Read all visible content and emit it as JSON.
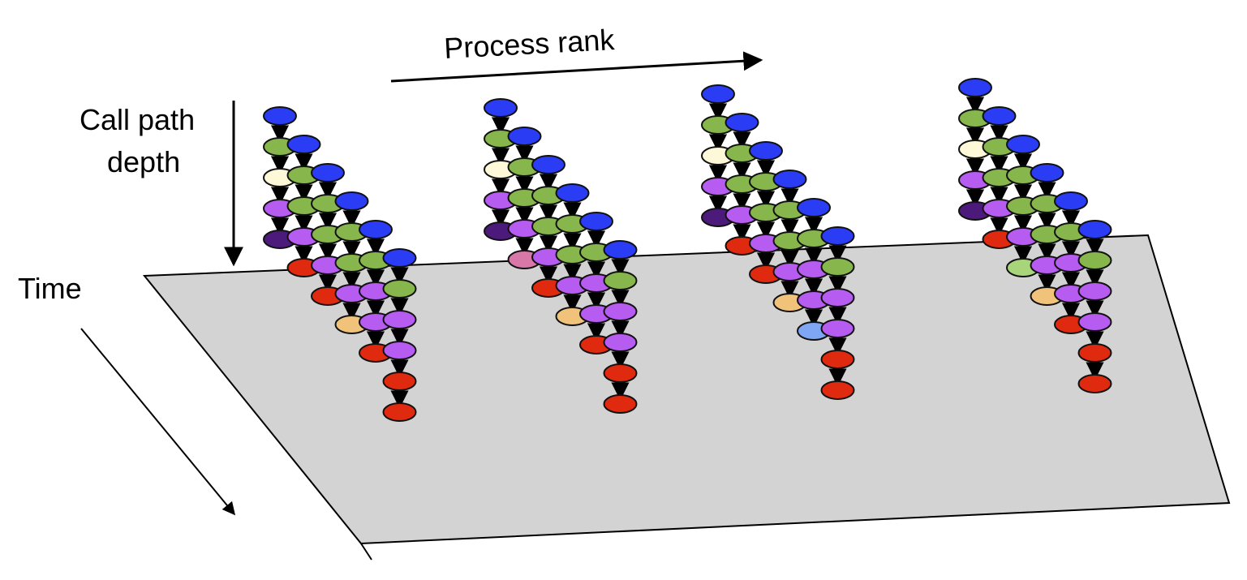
{
  "labels": {
    "process_rank": "Process rank",
    "call_path_depth_line1": "Call path",
    "call_path_depth_line2": "depth",
    "time": "Time"
  },
  "colors": {
    "plane_fill": "#d3d3d3",
    "plane_edge": "#000000",
    "arrow": "#000000",
    "node_stroke": "#111111",
    "node_palette": {
      "B": "#2a3df5",
      "G": "#86b64c",
      "W": "#fdf8d8",
      "P": "#b65cf0",
      "D": "#4b1a7a",
      "R": "#e02a10",
      "O": "#f0c27a",
      "K": "#d878a8",
      "L": "#7ea6f5",
      "Y": "#a8d47a"
    }
  },
  "diagram": {
    "process_groups": [
      {
        "stacks": [
          "BGWPD",
          "BGGPR",
          "BGGPR",
          "BGGPO",
          "BGPPR",
          "BGPPRR"
        ]
      },
      {
        "stacks": [
          "BGWPD",
          "BGGPK",
          "BGGPR",
          "BGGPO",
          "BGPPR",
          "BGPPRR"
        ]
      },
      {
        "stacks": [
          "BGWPD",
          "BGGPR",
          "BGGPR",
          "BGGPO",
          "BGPPL",
          "BGPPRR"
        ]
      },
      {
        "stacks": [
          "BGWPD",
          "BGGPR",
          "BGGPY",
          "BGGPO",
          "BGPPR",
          "BGPPRR"
        ]
      }
    ]
  }
}
